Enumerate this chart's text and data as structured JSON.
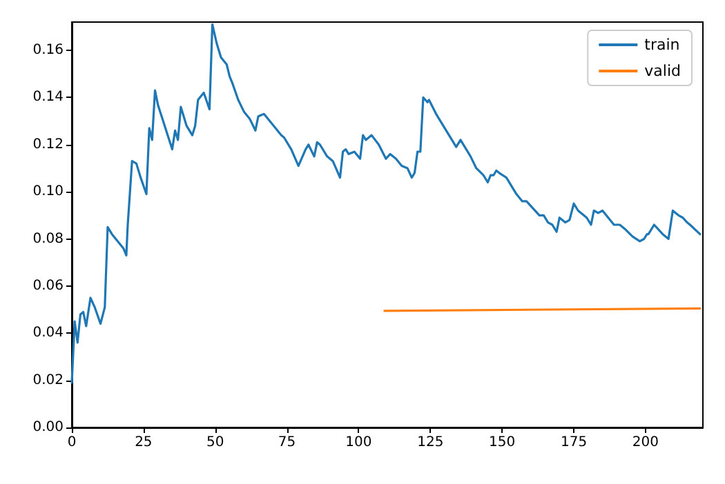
{
  "chart_data": {
    "type": "line",
    "xlim": [
      0,
      220
    ],
    "ylim": [
      0,
      0.172
    ],
    "xticks": [
      0,
      25,
      50,
      75,
      100,
      125,
      150,
      175,
      200
    ],
    "yticks": [
      {
        "value": 0,
        "label": "0.00"
      },
      {
        "value": 0.02,
        "label": "0.02"
      },
      {
        "value": 0.04,
        "label": "0.04"
      },
      {
        "value": 0.06,
        "label": "0.06"
      },
      {
        "value": 0.08,
        "label": "0.08"
      },
      {
        "value": 0.1,
        "label": "0.10"
      },
      {
        "value": 0.12,
        "label": "0.12"
      },
      {
        "value": 0.14,
        "label": "0.14"
      },
      {
        "value": 0.16,
        "label": "0.16"
      }
    ],
    "grid": false,
    "legend": "top right",
    "marker": "none",
    "line_style": "solid",
    "series": [
      {
        "name": "train",
        "color": "#1f77b4",
        "x": [
          0,
          1,
          2,
          3,
          4,
          5,
          6.5,
          8,
          10,
          11.5,
          12.5,
          14,
          18,
          19,
          19.5,
          21,
          22.5,
          24,
          26,
          27,
          28,
          29,
          30,
          35,
          36,
          37,
          38,
          40,
          42,
          43,
          44,
          46,
          48,
          49,
          50.5,
          52,
          54,
          55,
          56,
          58,
          60,
          62,
          64,
          65,
          67,
          69,
          71,
          73,
          74,
          76.5,
          79,
          81.5,
          82.5,
          84.5,
          85.5,
          86.5,
          89,
          91,
          93.5,
          94.5,
          95.5,
          96.5,
          98.5,
          100.5,
          101.5,
          102.5,
          104.5,
          107,
          109.5,
          111,
          113,
          115,
          117,
          118.5,
          119.5,
          120.5,
          121.5,
          122.5,
          124,
          124.5,
          127,
          130,
          132.5,
          134,
          135.5,
          139,
          141,
          143.5,
          145,
          146,
          147,
          148,
          149,
          151.5,
          155,
          157,
          158.5,
          163,
          164.5,
          166,
          167.5,
          169,
          170,
          172,
          173.5,
          175,
          176.5,
          179.5,
          181,
          182,
          183.5,
          185,
          187,
          189,
          191,
          193,
          195.5,
          198,
          199.5,
          200.5,
          201,
          203,
          206,
          208,
          209.5,
          211.5,
          213,
          214.5,
          215.5,
          219
        ],
        "values": [
          0.019,
          0.045,
          0.036,
          0.048,
          0.049,
          0.043,
          0.055,
          0.051,
          0.044,
          0.051,
          0.085,
          0.082,
          0.076,
          0.073,
          0.086,
          0.113,
          0.112,
          0.106,
          0.099,
          0.127,
          0.122,
          0.143,
          0.137,
          0.118,
          0.126,
          0.122,
          0.136,
          0.128,
          0.124,
          0.128,
          0.139,
          0.142,
          0.135,
          0.171,
          0.163,
          0.157,
          0.154,
          0.149,
          0.146,
          0.139,
          0.134,
          0.131,
          0.126,
          0.132,
          0.133,
          0.13,
          0.127,
          0.124,
          0.123,
          0.118,
          0.111,
          0.118,
          0.12,
          0.115,
          0.121,
          0.12,
          0.115,
          0.113,
          0.106,
          0.117,
          0.118,
          0.116,
          0.117,
          0.114,
          0.124,
          0.122,
          0.124,
          0.12,
          0.114,
          0.116,
          0.114,
          0.111,
          0.11,
          0.106,
          0.108,
          0.117,
          0.117,
          0.14,
          0.138,
          0.139,
          0.133,
          0.127,
          0.122,
          0.119,
          0.122,
          0.115,
          0.11,
          0.107,
          0.104,
          0.107,
          0.107,
          0.109,
          0.108,
          0.106,
          0.099,
          0.096,
          0.096,
          0.09,
          0.09,
          0.087,
          0.086,
          0.083,
          0.089,
          0.087,
          0.088,
          0.095,
          0.092,
          0.089,
          0.086,
          0.092,
          0.091,
          0.092,
          0.089,
          0.086,
          0.086,
          0.084,
          0.081,
          0.079,
          0.08,
          0.082,
          0.082,
          0.086,
          0.082,
          0.08,
          0.092,
          0.09,
          0.089,
          0.087,
          0.086,
          0.082
        ]
      },
      {
        "name": "valid",
        "color": "#ff7f0e",
        "x": [
          109,
          219
        ],
        "values": [
          0.0495,
          0.0505
        ]
      }
    ]
  }
}
